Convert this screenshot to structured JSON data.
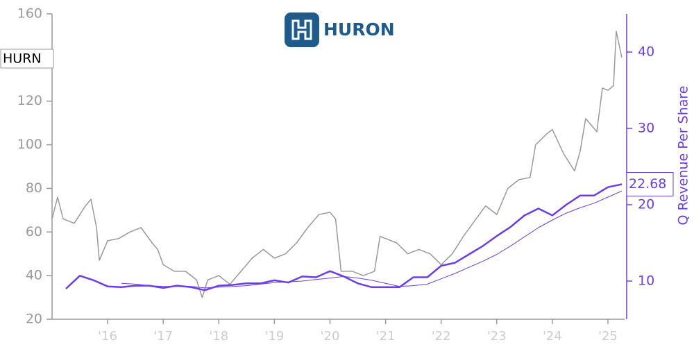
{
  "chart_data": {
    "type": "line",
    "title": "HURON",
    "y2label": "Q Revenue Per Share",
    "xlim": [
      2015.0,
      2025.3
    ],
    "xticks": [
      {
        "value": 2016,
        "label": "'16"
      },
      {
        "value": 2017,
        "label": "'17"
      },
      {
        "value": 2018,
        "label": "'18"
      },
      {
        "value": 2019,
        "label": "'19"
      },
      {
        "value": 2020,
        "label": "'20"
      },
      {
        "value": 2021,
        "label": "'21"
      },
      {
        "value": 2022,
        "label": "'22"
      },
      {
        "value": 2023,
        "label": "'23"
      },
      {
        "value": 2024,
        "label": "'24"
      },
      {
        "value": 2025,
        "label": "'25"
      }
    ],
    "ylim": [
      20,
      160
    ],
    "yticks": [
      20,
      40,
      60,
      80,
      100,
      120,
      140,
      160
    ],
    "y2lim": [
      5,
      45
    ],
    "y2ticks": [
      10,
      20,
      30,
      40
    ],
    "series": [
      {
        "name": "HURN",
        "color": "#999999",
        "width": 1.5,
        "x": [
          2015.0,
          2015.1,
          2015.2,
          2015.4,
          2015.6,
          2015.7,
          2015.8,
          2015.85,
          2016.0,
          2016.2,
          2016.4,
          2016.6,
          2016.8,
          2016.9,
          2017.0,
          2017.2,
          2017.4,
          2017.6,
          2017.7,
          2017.8,
          2018.0,
          2018.2,
          2018.4,
          2018.6,
          2018.8,
          2019.0,
          2019.2,
          2019.4,
          2019.6,
          2019.8,
          2020.0,
          2020.1,
          2020.2,
          2020.4,
          2020.6,
          2020.8,
          2020.9,
          2021.0,
          2021.2,
          2021.4,
          2021.6,
          2021.8,
          2022.0,
          2022.2,
          2022.4,
          2022.6,
          2022.8,
          2023.0,
          2023.2,
          2023.4,
          2023.6,
          2023.7,
          2023.9,
          2024.0,
          2024.2,
          2024.4,
          2024.5,
          2024.6,
          2024.8,
          2024.9,
          2025.0,
          2025.1,
          2025.15,
          2025.25
        ],
        "values": [
          66,
          76,
          66,
          64,
          72,
          75,
          62,
          47,
          56,
          57,
          60,
          62,
          55,
          52,
          45,
          42,
          42,
          38,
          30,
          38,
          40,
          36,
          42,
          48,
          52,
          48,
          50,
          55,
          62,
          68,
          69,
          66,
          42,
          42,
          40,
          42,
          58,
          57,
          55,
          50,
          52,
          50,
          45,
          50,
          58,
          65,
          72,
          68,
          80,
          84,
          85,
          100,
          105,
          107,
          96,
          88,
          97,
          112,
          106,
          126,
          125,
          127,
          152,
          140
        ]
      },
      {
        "color": "#6a3de8",
        "axis": "y2",
        "width": 1,
        "x": [
          2016.25,
          2016.5,
          2016.75,
          2017.0,
          2017.25,
          2017.5,
          2017.75,
          2018.0,
          2018.25,
          2018.5,
          2018.75,
          2019.0,
          2019.25,
          2019.5,
          2019.75,
          2020.0,
          2020.25,
          2020.5,
          2020.75,
          2021.0,
          2021.25,
          2021.5,
          2021.75,
          2022.0,
          2022.25,
          2022.5,
          2022.75,
          2023.0,
          2023.25,
          2023.5,
          2023.75,
          2024.0,
          2024.25,
          2024.5,
          2024.75,
          2025.0,
          2025.25
        ],
        "values": [
          9.7,
          9.6,
          9.4,
          9.3,
          9.3,
          9.3,
          9.1,
          9.2,
          9.3,
          9.4,
          9.6,
          9.8,
          9.9,
          10.0,
          10.2,
          10.4,
          10.6,
          10.4,
          10.1,
          9.7,
          9.3,
          9.4,
          9.6,
          10.3,
          11.0,
          11.8,
          12.6,
          13.5,
          14.6,
          15.8,
          17.0,
          18.0,
          18.9,
          19.6,
          20.2,
          21.0,
          21.8
        ]
      },
      {
        "color": "#6a3de8",
        "axis": "y2",
        "width": 2.5,
        "x": [
          2015.25,
          2015.5,
          2015.75,
          2016.0,
          2016.25,
          2016.5,
          2016.75,
          2017.0,
          2017.25,
          2017.5,
          2017.75,
          2018.0,
          2018.25,
          2018.5,
          2018.75,
          2019.0,
          2019.25,
          2019.5,
          2019.75,
          2020.0,
          2020.25,
          2020.5,
          2020.75,
          2021.0,
          2021.25,
          2021.5,
          2021.75,
          2022.0,
          2022.25,
          2022.5,
          2022.75,
          2023.0,
          2023.25,
          2023.5,
          2023.75,
          2024.0,
          2024.25,
          2024.5,
          2024.75,
          2025.0,
          2025.25
        ],
        "values": [
          9.0,
          10.7,
          10.1,
          9.3,
          9.2,
          9.4,
          9.4,
          9.1,
          9.4,
          9.2,
          8.8,
          9.4,
          9.5,
          9.7,
          9.7,
          10.1,
          9.8,
          10.6,
          10.5,
          11.3,
          10.6,
          9.7,
          9.2,
          9.2,
          9.2,
          10.5,
          10.5,
          12.0,
          12.4,
          13.5,
          14.6,
          15.9,
          17.1,
          18.6,
          19.5,
          18.6,
          20.0,
          21.2,
          21.2,
          22.3,
          22.68
        ]
      }
    ]
  }
}
